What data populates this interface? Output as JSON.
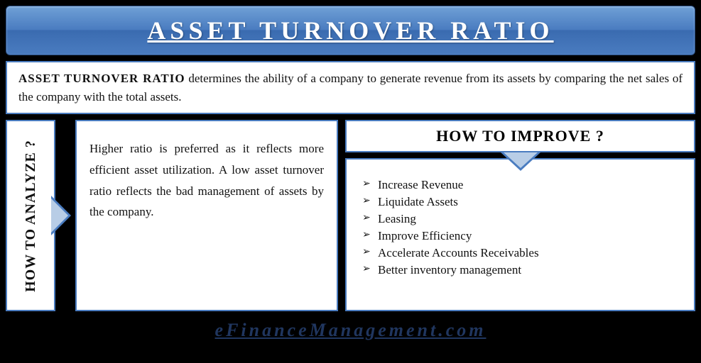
{
  "colors": {
    "background": "#000000",
    "box_border": "#4a7cc0",
    "box_fill": "#ffffff",
    "title_gradient_top": "#6fa0d6",
    "title_gradient_bottom": "#3a6bb0",
    "arrow_fill": "#b8cde6",
    "footer_text": "#20365f"
  },
  "title": {
    "text": "ASSET TURNOVER RATIO",
    "fontsize": 36,
    "letter_spacing": 6,
    "underline": true,
    "color": "#ffffff"
  },
  "definition": {
    "term": "ASSET TURNOVER RATIO",
    "body": " determines the ability of a company to generate revenue from its assets by comparing the net sales of the company with the total assets.",
    "fontsize": 17
  },
  "analyze": {
    "label": "HOW TO ANALYZE ?",
    "body": "Higher ratio is preferred as it reflects more efficient asset utilization. A low asset turnover ratio reflects the bad management of assets by the company.",
    "label_fontsize": 20,
    "body_fontsize": 17
  },
  "improve": {
    "header": "HOW TO IMPROVE ?",
    "header_fontsize": 22,
    "items": [
      "Increase Revenue",
      "Liquidate Assets",
      "Leasing",
      "Improve Efficiency",
      "Accelerate Accounts Receivables",
      "Better inventory management"
    ],
    "item_fontsize": 17,
    "bullet": "➢"
  },
  "footer": {
    "text": "eFinanceManagement.com",
    "fontsize": 26,
    "color": "#20365f",
    "italic": true,
    "underline": true,
    "letter_spacing": 4
  }
}
